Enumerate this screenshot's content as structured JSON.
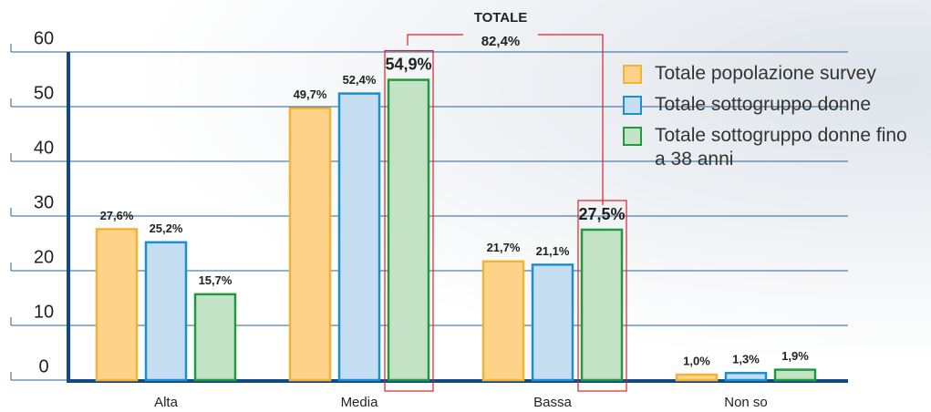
{
  "chart_data": {
    "type": "bar",
    "categories": [
      "Alta",
      "Media",
      "Bassa",
      "Non so"
    ],
    "series": [
      {
        "name": "Totale popolazione survey",
        "color": "#fdd38a",
        "stroke": "#f5b335",
        "values": [
          27.6,
          49.7,
          21.7,
          1.0
        ],
        "value_labels": [
          "27,6%",
          "49,7%",
          "21,7%",
          "1,0%"
        ]
      },
      {
        "name": "Totale sottogruppo donne",
        "color": "#c6def2",
        "stroke": "#1b8fd2",
        "values": [
          25.2,
          52.4,
          21.1,
          1.3
        ],
        "value_labels": [
          "25,2%",
          "52,4%",
          "21,1%",
          "1,3%"
        ]
      },
      {
        "name": "Totale sottogruppo donne fino a 38 anni",
        "color": "#c3e2c6",
        "stroke": "#1f9a3c",
        "values": [
          15.7,
          54.9,
          27.5,
          1.9
        ],
        "value_labels": [
          "15,7%",
          "54,9%",
          "27,5%",
          "1,9%"
        ]
      }
    ],
    "annotation": {
      "title": "TOTALE",
      "label": "82,4%"
    },
    "ylim": [
      0,
      60
    ],
    "yticks": [
      0,
      10,
      20,
      30,
      40,
      50,
      60
    ],
    "grid": true,
    "legend": "top-right"
  }
}
